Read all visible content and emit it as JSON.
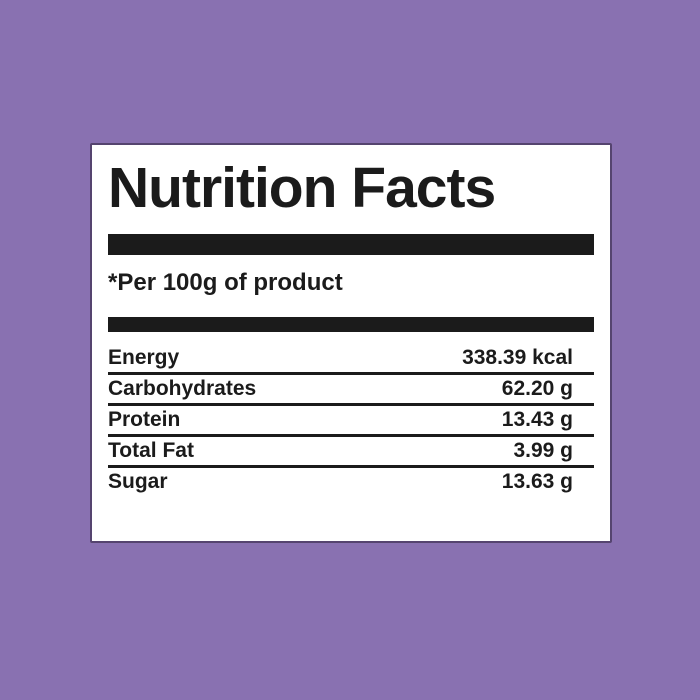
{
  "label": {
    "title": "Nutrition Facts",
    "serving_note": "*Per 100g of product",
    "rows": [
      {
        "name": "Energy",
        "value": "338.39 kcal"
      },
      {
        "name": "Carbohydrates",
        "value": "62.20 g"
      },
      {
        "name": "Protein",
        "value": "13.43 g"
      },
      {
        "name": "Total Fat",
        "value": "3.99 g"
      },
      {
        "name": "Sugar",
        "value": "13.63 g"
      }
    ]
  },
  "colors": {
    "background": "#8971B1",
    "card_background": "#FFFFFF",
    "card_border": "#55446F",
    "text": "#1B1B1B",
    "divider_bar": "#1B1B1B"
  }
}
